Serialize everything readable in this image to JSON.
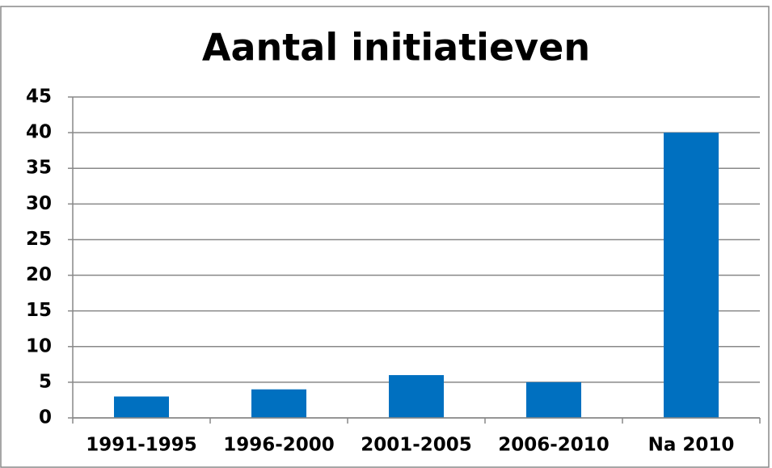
{
  "chart_data": {
    "type": "bar",
    "title": "Aantal initiatieven",
    "categories": [
      "1991-1995",
      "1996-2000",
      "2001-2005",
      "2006-2010",
      "Na 2010"
    ],
    "values": [
      3,
      4,
      6,
      5,
      40
    ],
    "color": "#0070c0",
    "ylim": [
      0,
      45
    ],
    "yticks": [
      0,
      5,
      10,
      15,
      20,
      25,
      30,
      35,
      40,
      45
    ],
    "grid": true
  }
}
